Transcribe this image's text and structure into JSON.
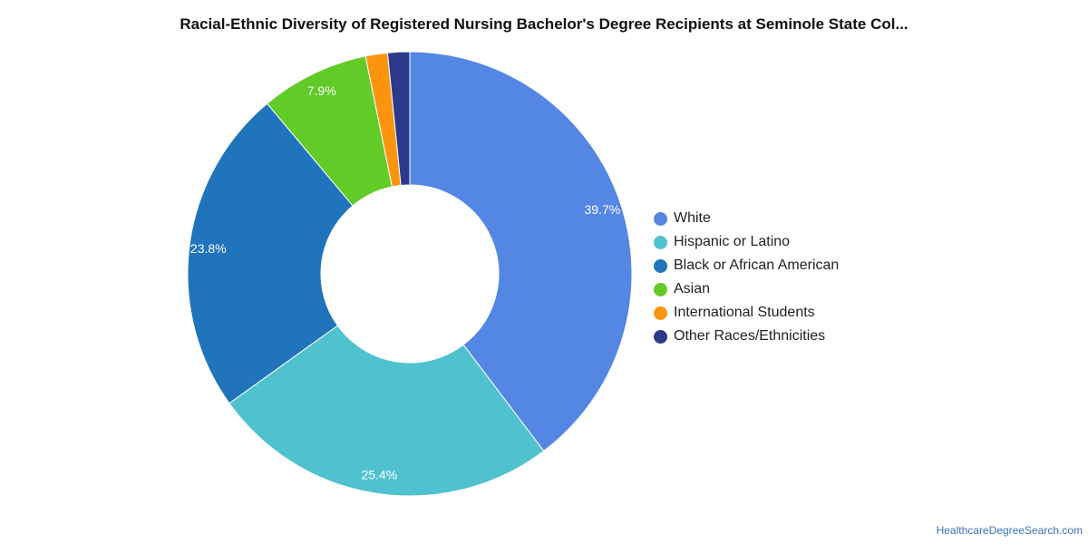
{
  "header": {
    "title": "Racial-Ethnic Diversity of Registered Nursing Bachelor's Degree Recipients at Seminole State Col..."
  },
  "chart_data": {
    "type": "pie",
    "title": "Racial-Ethnic Diversity of Registered Nursing Bachelor's Degree Recipients at Seminole State Col...",
    "hole": true,
    "legend_position": "right",
    "slices": [
      {
        "label": "White",
        "value": 39.7,
        "display": "39.7%",
        "color": "#5486e4"
      },
      {
        "label": "Hispanic or Latino",
        "value": 25.4,
        "display": "25.4%",
        "color": "#50c1cf"
      },
      {
        "label": "Black or African American",
        "value": 23.8,
        "display": "23.8%",
        "color": "#1f74bb"
      },
      {
        "label": "Asian",
        "value": 7.9,
        "display": "7.9%",
        "color": "#62cb27"
      },
      {
        "label": "International Students",
        "value": 1.6,
        "display": "",
        "color": "#fb9510"
      },
      {
        "label": "Other Races/Ethnicities",
        "value": 1.6,
        "display": "",
        "color": "#2c3a8c"
      }
    ]
  },
  "footer": {
    "source": "HealthcareDegreeSearch.com"
  }
}
